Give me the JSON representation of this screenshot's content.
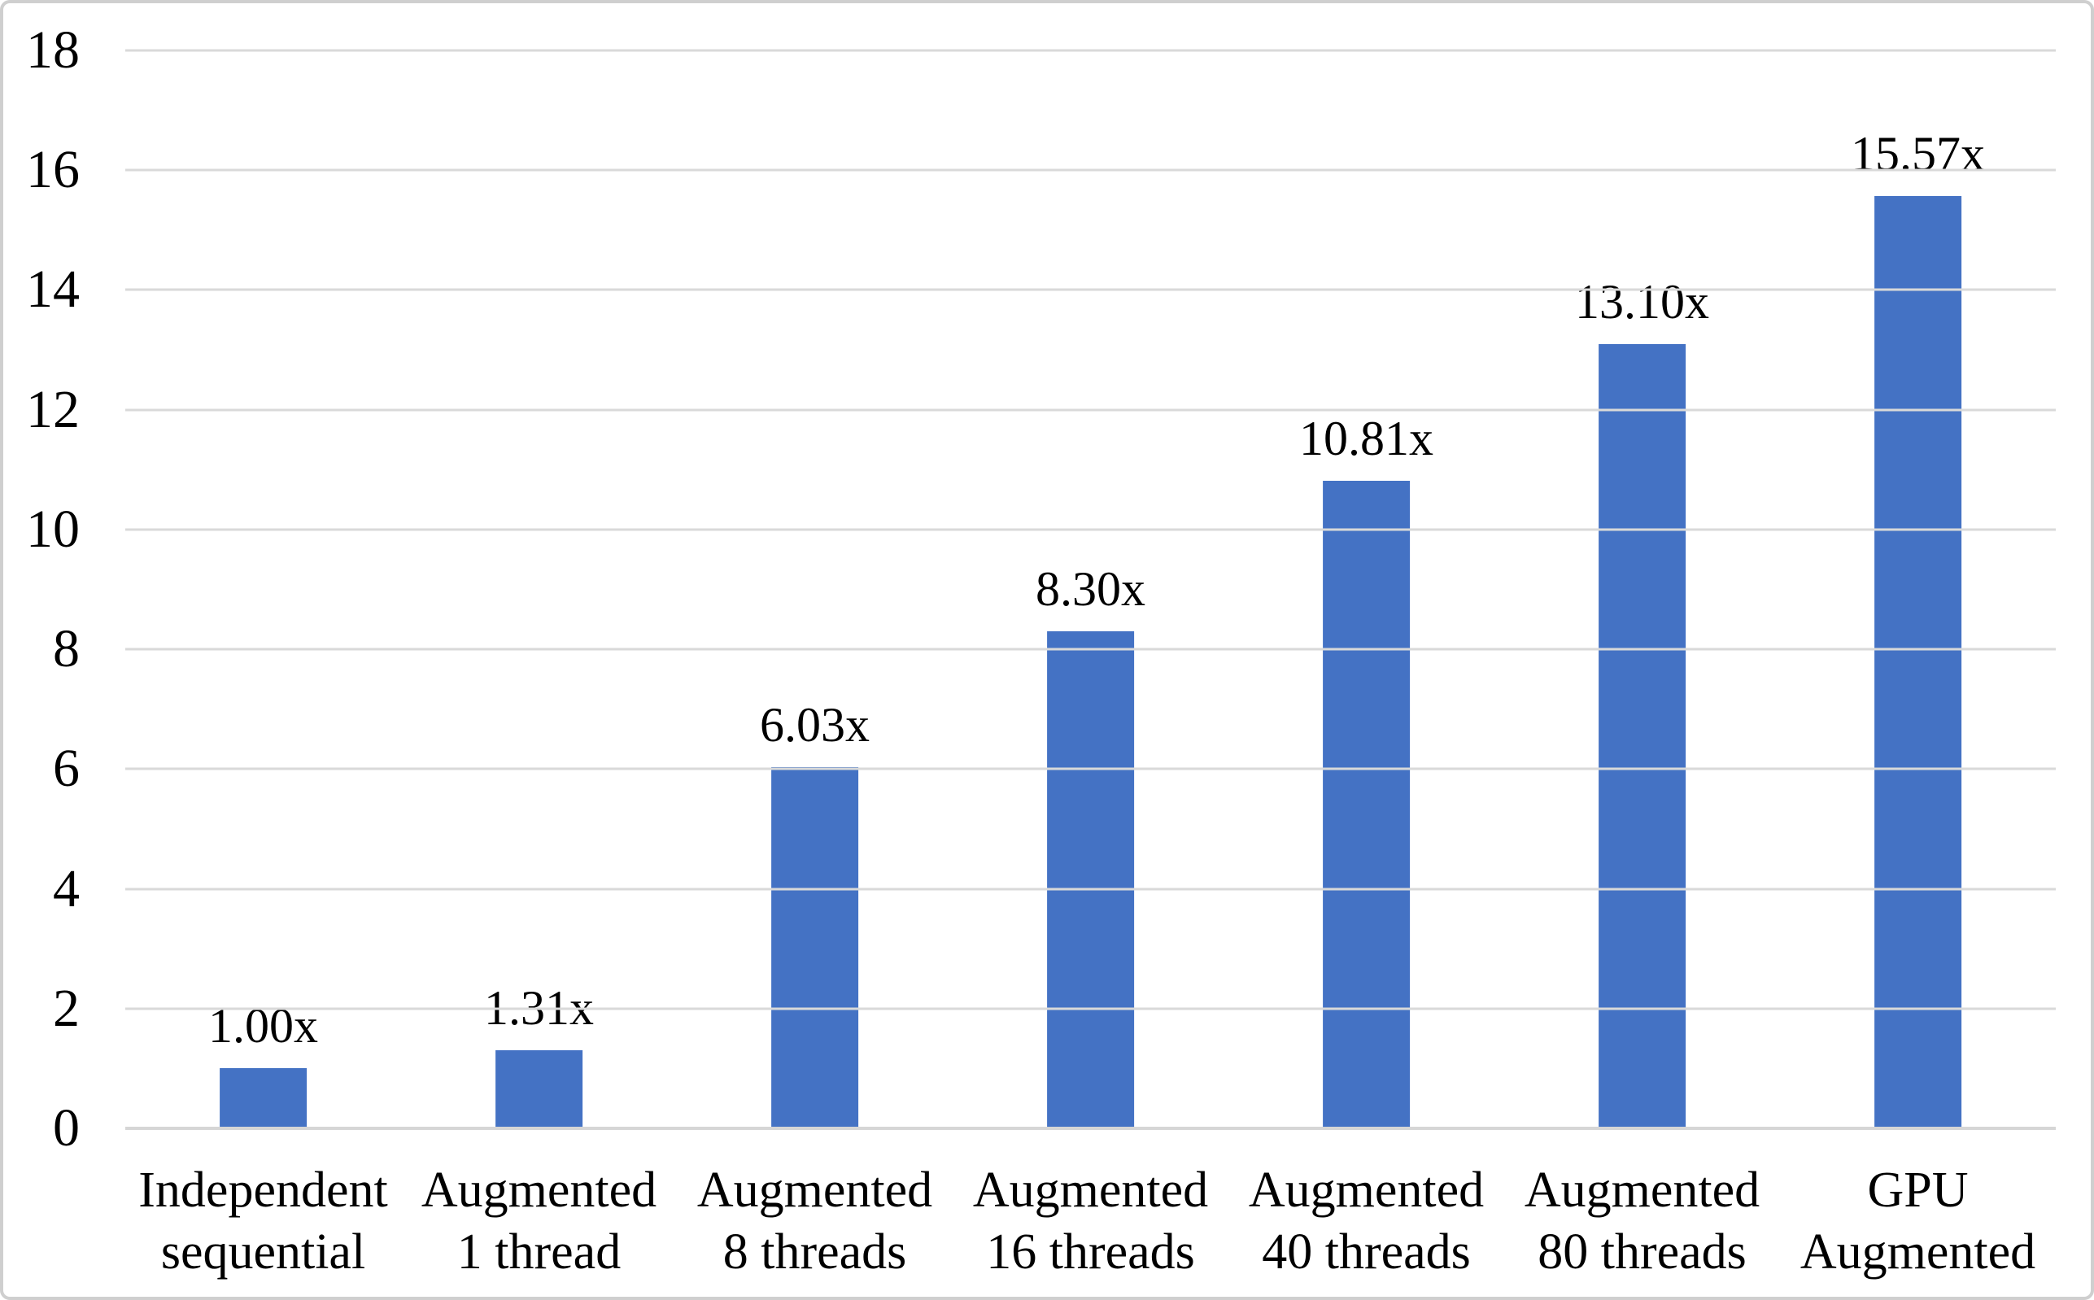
{
  "chart_data": {
    "type": "bar",
    "title": "",
    "xlabel": "",
    "ylabel": "",
    "categories": [
      "Independent\nsequential",
      "Augmented\n1 thread",
      "Augmented\n8 threads",
      "Augmented\n16 threads",
      "Augmented\n40 threads",
      "Augmented\n80 threads",
      "GPU\nAugmented"
    ],
    "values": [
      1.0,
      1.31,
      6.03,
      8.3,
      10.81,
      13.1,
      15.57
    ],
    "data_labels": [
      "1.00x",
      "1.31x",
      "6.03x",
      "8.30x",
      "10.81x",
      "13.10x",
      "15.57x"
    ],
    "ylim": [
      0,
      18
    ],
    "yticks": [
      "0",
      "2",
      "4",
      "6",
      "8",
      "10",
      "12",
      "14",
      "16",
      "18"
    ],
    "grid": "horizontal",
    "legend": "none",
    "colors": {
      "bar": "#4472C4",
      "gridline": "#D9D9D9",
      "axis_line": "#D6D6D6",
      "text": "#000000",
      "background": "#FFFFFF",
      "border": "#CFCFCF"
    }
  }
}
